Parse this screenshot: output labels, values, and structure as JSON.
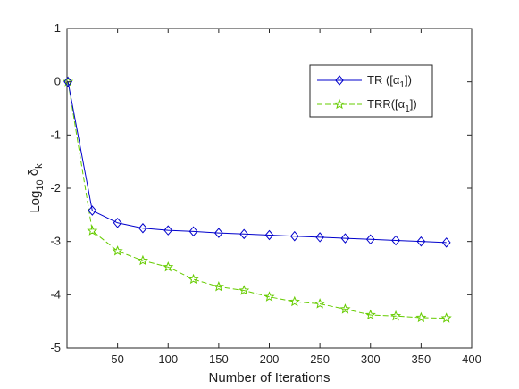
{
  "chart_data": {
    "type": "line",
    "xlabel": "Number of Iterations",
    "ylabel": {
      "base": "Log",
      "base_sub": "10",
      "symbol": "δ",
      "symbol_sub": "k"
    },
    "xlim": [
      0,
      400
    ],
    "ylim": [
      -5,
      1
    ],
    "xticks": [
      50,
      100,
      150,
      200,
      250,
      300,
      350,
      400
    ],
    "yticks": [
      -5,
      -4,
      -3,
      -2,
      -1,
      0,
      1
    ],
    "grid": false,
    "legend_position": "top-right",
    "series": [
      {
        "name": "TR ([α1])",
        "label_parts": {
          "before": "TR ([α",
          "sub": "1",
          "after": "])"
        },
        "color": "#0000cc",
        "marker": "diamond",
        "line_style": "solid",
        "x": [
          1,
          25,
          50,
          75,
          100,
          125,
          150,
          175,
          200,
          225,
          250,
          275,
          300,
          325,
          350,
          375
        ],
        "y": [
          0,
          -2.42,
          -2.65,
          -2.75,
          -2.79,
          -2.81,
          -2.84,
          -2.86,
          -2.88,
          -2.9,
          -2.92,
          -2.94,
          -2.96,
          -2.98,
          -3.0,
          -3.02
        ]
      },
      {
        "name": "TRR([α1])",
        "label_parts": {
          "before": "TRR([α",
          "sub": "1",
          "after": "])"
        },
        "color": "#66cc00",
        "marker": "star",
        "line_style": "dashed",
        "x": [
          1,
          25,
          50,
          75,
          100,
          125,
          150,
          175,
          200,
          225,
          250,
          275,
          300,
          325,
          350,
          375
        ],
        "y": [
          0,
          -2.8,
          -3.18,
          -3.36,
          -3.48,
          -3.71,
          -3.85,
          -3.92,
          -4.04,
          -4.13,
          -4.17,
          -4.27,
          -4.38,
          -4.4,
          -4.43,
          -4.44
        ]
      }
    ]
  }
}
